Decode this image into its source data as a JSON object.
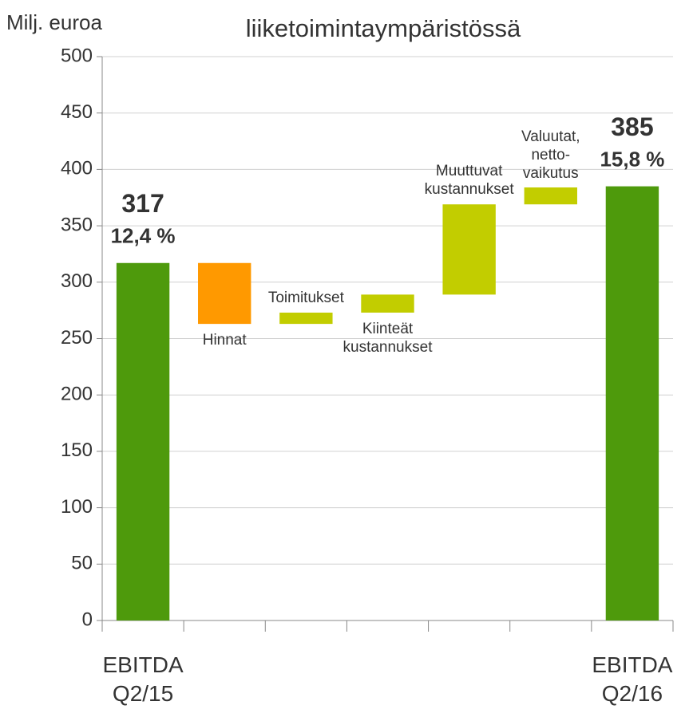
{
  "chart_data": {
    "type": "waterfall",
    "title": "liiketoimintaympäristössä",
    "ylabel": "Milj. euroa",
    "categories": [
      "EBITDA Q2/15",
      "Hinnat",
      "Toimitukset",
      "Kiinteät kustannukset",
      "Muuttuvat kustannukset",
      "Valuutat, netto-vaikutus",
      "EBITDA Q2/16"
    ],
    "measure": [
      "total",
      "relative",
      "relative",
      "relative",
      "relative",
      "relative",
      "total"
    ],
    "values": [
      317,
      -54,
      10,
      16,
      80,
      15,
      385
    ],
    "margin_labels": [
      "12,4 %",
      null,
      null,
      null,
      null,
      null,
      "15,8 %"
    ],
    "colors": {
      "total": "#4e9a0c",
      "decrease": "#ff9900",
      "increase": "#c2cd00"
    },
    "ylim": [
      0,
      500
    ],
    "yticks": [
      0,
      50,
      100,
      150,
      200,
      250,
      300,
      350,
      400,
      450,
      500
    ],
    "grid": true
  }
}
